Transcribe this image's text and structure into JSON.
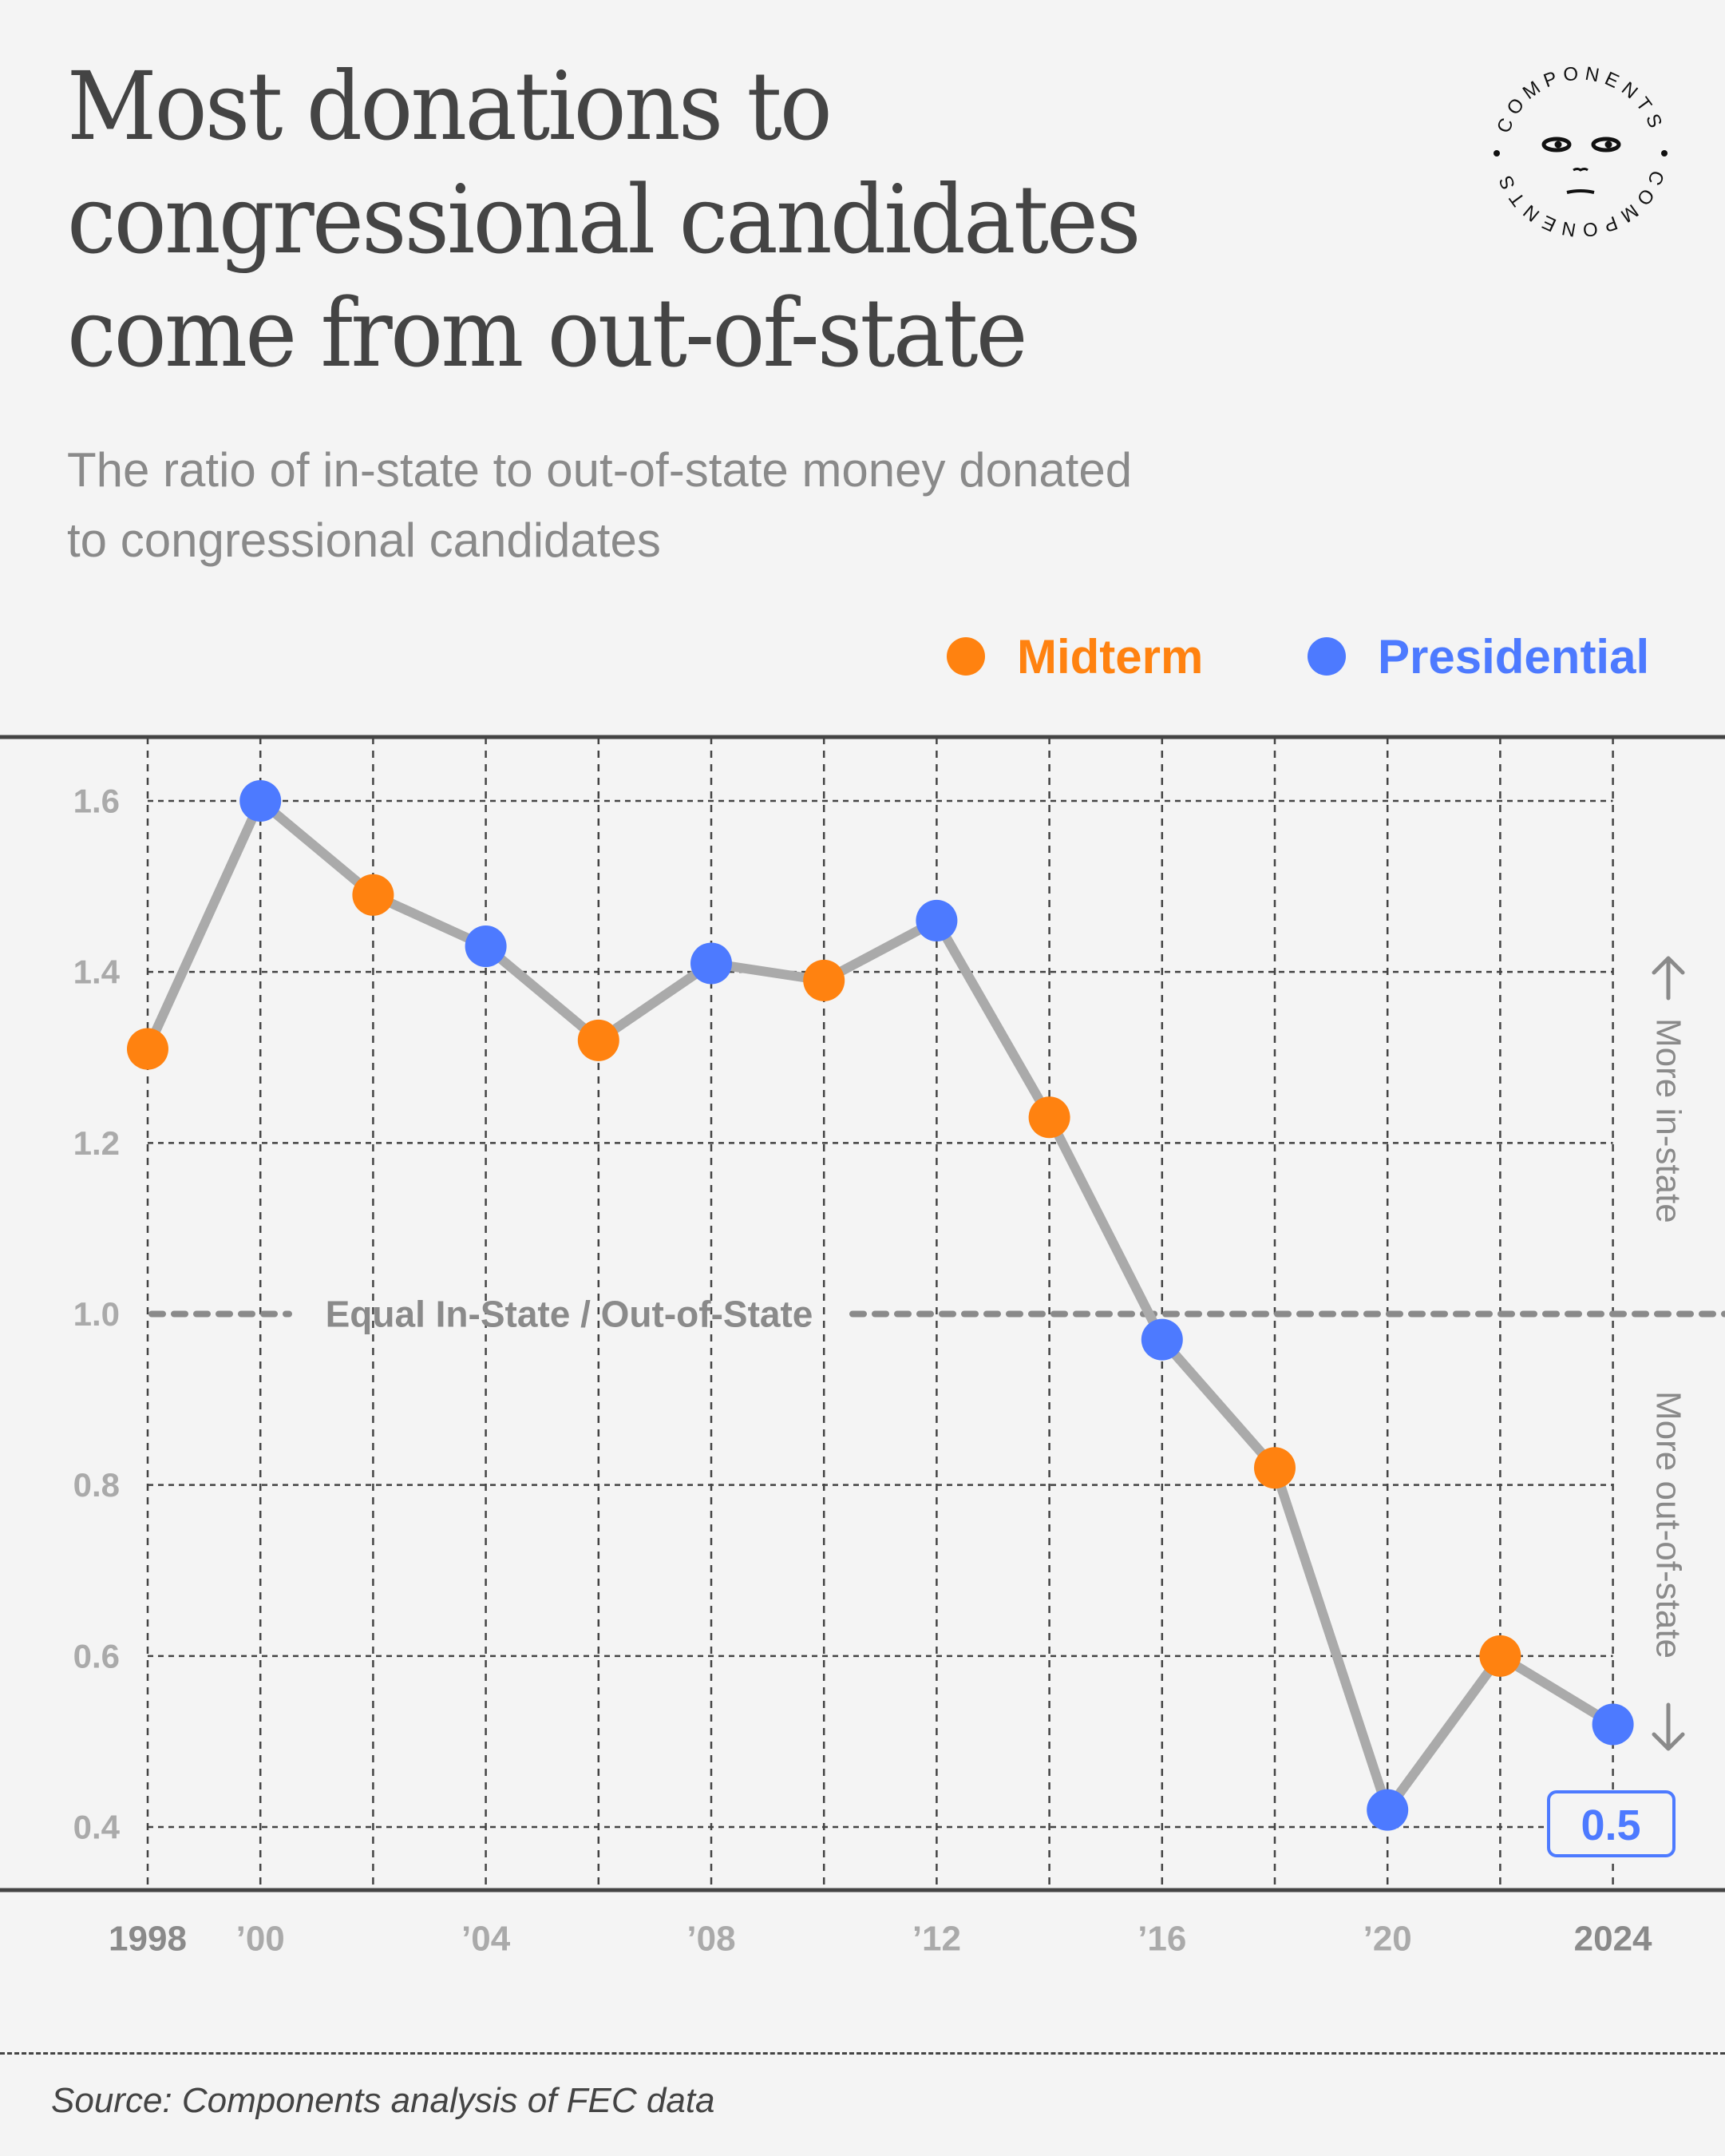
{
  "header": {
    "title_lines": [
      "Most donations to",
      "congressional candidates",
      "come from out-of-state"
    ],
    "subtitle_lines": [
      "The ratio of in-state to out-of-state money donated",
      "to congressional candidates"
    ],
    "logo": {
      "icon": "components-face-logo",
      "ring_text": "COMPONENTS"
    }
  },
  "legend": [
    {
      "label": "Midterm",
      "color": "#ff8210"
    },
    {
      "label": "Presidential",
      "color": "#4d7aff"
    }
  ],
  "colors": {
    "line": "#aaaaaa",
    "grid": "#444444",
    "axis": "#444444",
    "reference": "#8a8a8a",
    "background": "#f4f4f4"
  },
  "chart_data": {
    "type": "line",
    "title": "Most donations to congressional candidates come from out-of-state",
    "subtitle": "The ratio of in-state to out-of-state money donated to congressional candidates",
    "xlabel": "",
    "ylabel": "",
    "x": [
      1998,
      2000,
      2002,
      2004,
      2006,
      2008,
      2010,
      2012,
      2014,
      2016,
      2018,
      2020,
      2022,
      2024
    ],
    "x_tick_labels": [
      {
        "x": 1998,
        "label": "1998",
        "emphasis": true
      },
      {
        "x": 2000,
        "label": "’00",
        "emphasis": false
      },
      {
        "x": 2004,
        "label": "’04",
        "emphasis": false
      },
      {
        "x": 2008,
        "label": "’08",
        "emphasis": false
      },
      {
        "x": 2012,
        "label": "’12",
        "emphasis": false
      },
      {
        "x": 2016,
        "label": "’16",
        "emphasis": false
      },
      {
        "x": 2020,
        "label": "’20",
        "emphasis": false
      },
      {
        "x": 2024,
        "label": "2024",
        "emphasis": true
      }
    ],
    "y_ticks": [
      0.4,
      0.6,
      0.8,
      1.0,
      1.2,
      1.4,
      1.6
    ],
    "y_tick_labels": [
      "0.4",
      "0.6",
      "0.8",
      "1.0",
      "1.2",
      "1.4",
      "1.6"
    ],
    "ylim": [
      0.4,
      1.6
    ],
    "grid": true,
    "legend_position": "top-right",
    "series": [
      {
        "name": "In-state / out-of-state ratio",
        "values": [
          1.31,
          1.6,
          1.49,
          1.43,
          1.32,
          1.41,
          1.39,
          1.46,
          1.23,
          0.97,
          0.82,
          0.42,
          0.6,
          0.52
        ],
        "election_type": [
          "Midterm",
          "Presidential",
          "Midterm",
          "Presidential",
          "Midterm",
          "Presidential",
          "Midterm",
          "Presidential",
          "Midterm",
          "Presidential",
          "Midterm",
          "Presidential",
          "Midterm",
          "Presidential"
        ]
      }
    ],
    "reference_line": {
      "y": 1.0,
      "label": "Equal In-State / Out-of-State"
    },
    "annotations": {
      "upper": "More in-state",
      "lower": "More out-of-state",
      "last_value_label": "0.5"
    }
  },
  "footer": {
    "source": "Source: Components analysis of FEC data"
  }
}
